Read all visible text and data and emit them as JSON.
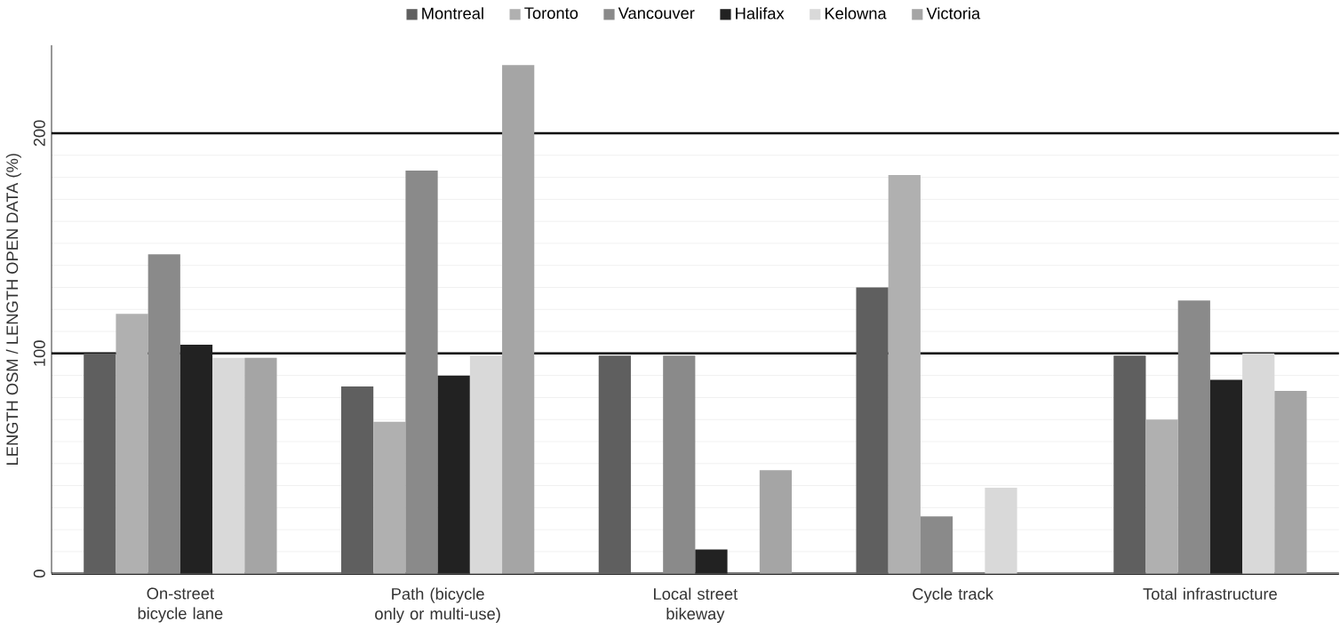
{
  "chart_data": {
    "type": "bar",
    "ylabel": "LENGTH OSM / LENGTH OPEN DATA (%)",
    "categories": [
      "On-street bicycle lane",
      "Path (bicycle only or multi-use)",
      "Local street bikeway",
      "Cycle track",
      "Total infrastructure"
    ],
    "series": [
      {
        "name": "Montreal",
        "color": "#5f5f5f",
        "values": [
          100,
          85,
          99,
          130,
          99
        ]
      },
      {
        "name": "Toronto",
        "color": "#b0b0b0",
        "values": [
          118,
          69,
          0,
          181,
          70
        ]
      },
      {
        "name": "Vancouver",
        "color": "#8a8a8a",
        "values": [
          145,
          183,
          99,
          26,
          124
        ]
      },
      {
        "name": "Halifax",
        "color": "#222222",
        "values": [
          104,
          90,
          11,
          0,
          88
        ]
      },
      {
        "name": "Kelowna",
        "color": "#d9d9d9",
        "values": [
          98,
          99,
          0,
          39,
          100
        ]
      },
      {
        "name": "Victoria",
        "color": "#a5a5a5",
        "values": [
          98,
          231,
          47,
          0,
          83
        ]
      }
    ],
    "ylim": [
      0,
      240
    ],
    "yticks": [
      0,
      100,
      200
    ],
    "grid": "y",
    "legend": "top"
  }
}
